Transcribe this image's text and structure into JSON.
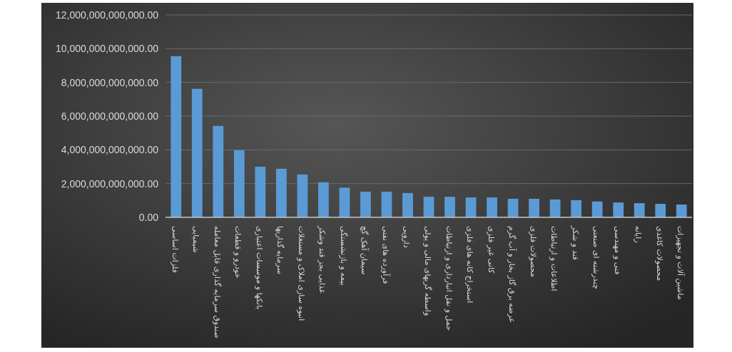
{
  "chart_data": {
    "type": "bar",
    "categories": [
      "فلزات اساسی",
      "شیمیایی",
      "صندوق سرمایه گذاری قابل معامله",
      "خودرو و قطعات",
      "بانکها و موسسات اعتباری",
      "سرمایه گذاریها",
      "انبوه سازی املاک و مستغلات",
      "غذایی بجز قند وشکر",
      "بیمه و بازنشستگی",
      "سیمان آهک گچ",
      "فرآورده های نفتی",
      "دارویی",
      "واسطه گریهای مالی و پولی",
      "حمل و نقل انبارداری و ارتباطات",
      "استخراج کانه های فلزی",
      "کانی غیر فلزی",
      "عرضه برق گاز بخار و آب گرم",
      "محصولات فلزی",
      "اطلاعات و ارتباطات",
      "قند و شکر",
      "چندرشته ای صنعتی",
      "فنی و مهندسی",
      "رایانه",
      "محصولات کاغذی",
      "ماشین آلات و تجهیزات"
    ],
    "series": [
      {
        "color": "#5b9bd5",
        "values": [
          9560000000000,
          7620000000000,
          5420000000000,
          3980000000000,
          3000000000000,
          2880000000000,
          2540000000000,
          2080000000000,
          1760000000000,
          1520000000000,
          1520000000000,
          1440000000000,
          1220000000000,
          1220000000000,
          1180000000000,
          1180000000000,
          1100000000000,
          1100000000000,
          1060000000000,
          1020000000000,
          940000000000,
          880000000000,
          840000000000,
          800000000000,
          760000000000
        ]
      }
    ],
    "ylim": [
      0,
      12000000000000
    ],
    "yticks": [
      {
        "value": 0,
        "label": "0.00"
      },
      {
        "value": 2000000000000,
        "label": "2,000,000,000,000.00"
      },
      {
        "value": 4000000000000,
        "label": "4,000,000,000,000.00"
      },
      {
        "value": 6000000000000,
        "label": "6,000,000,000,000.00"
      },
      {
        "value": 8000000000000,
        "label": "8,000,000,000,000.00"
      },
      {
        "value": 10000000000000,
        "label": "10,000,000,000,000.00"
      },
      {
        "value": 12000000000000,
        "label": "12,000,000,000,000.00"
      }
    ],
    "grid": "y"
  }
}
